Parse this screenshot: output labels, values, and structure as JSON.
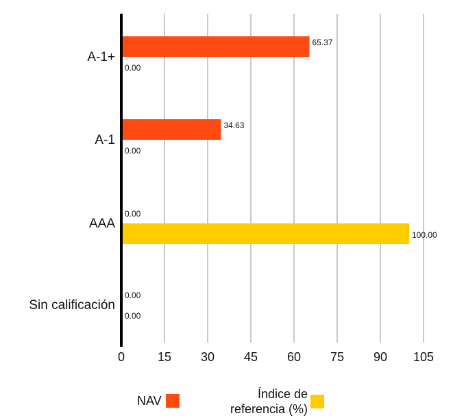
{
  "chart_data": {
    "type": "bar",
    "orientation": "horizontal",
    "categories": [
      "A-1+",
      "A-1",
      "AAA",
      "Sin calificación"
    ],
    "series": [
      {
        "name": "NAV",
        "color": "#FF4A12",
        "values": [
          65.37,
          34.63,
          0.0,
          0.0
        ]
      },
      {
        "name": "Índice de referencia (%)",
        "color": "#FFCC00",
        "values": [
          0.0,
          0.0,
          100.0,
          0.0
        ]
      }
    ],
    "xlim": [
      0,
      105
    ],
    "xticks": [
      "0",
      "15",
      "30",
      "45",
      "60",
      "75",
      "90",
      "105"
    ],
    "xtick_values": [
      0,
      15,
      30,
      45,
      60,
      75,
      90,
      105
    ],
    "grid": true,
    "legend": "bottom",
    "data_labels": true
  },
  "legend": {
    "nav_label": "NAV",
    "index_label_line1": "Índice de",
    "index_label_line2": "referencia (%)",
    "nav_color": "#FF4A12",
    "index_color": "#FFCC00"
  }
}
